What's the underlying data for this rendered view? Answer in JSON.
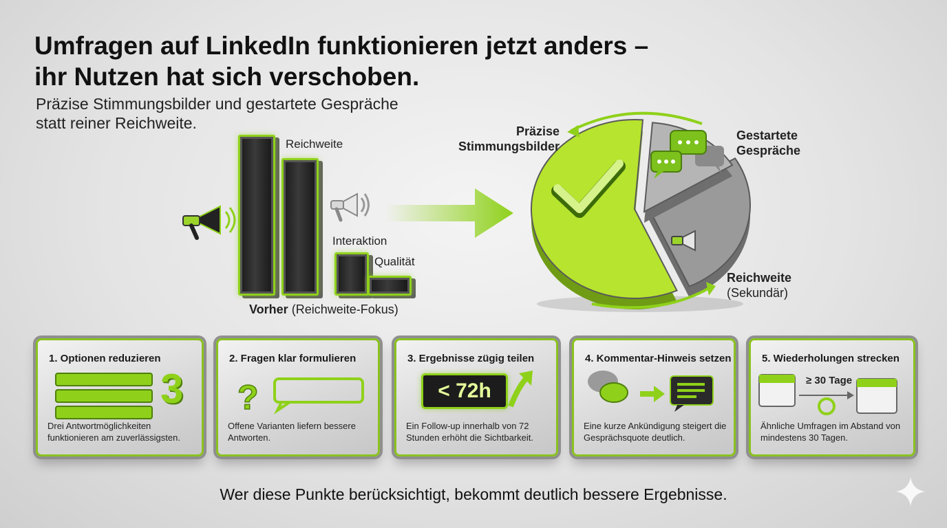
{
  "title": {
    "line1": "Umfragen auf LinkedIn funktionieren jetzt anders –",
    "line2": "ihr Nutzen hat sich verschoben."
  },
  "subtitle": {
    "line1": "Präzise Stimmungsbilder und gestartete Gespräche",
    "line2": "statt reiner Reichweite."
  },
  "before_chart": {
    "bars": [
      {
        "label": "Reichweite",
        "value": 1.0
      },
      {
        "label": "",
        "value": 0.85
      },
      {
        "label": "Interaktion",
        "value": 0.25
      },
      {
        "label": "Qualität",
        "value": 0.1
      }
    ],
    "caption_bold": "Vorher",
    "caption_rest": "(Reichweite-Fokus)"
  },
  "after_chart": {
    "segments": [
      {
        "label_line1": "Präzise",
        "label_line2": "Stimmungsbilder",
        "share": 0.58,
        "color": "#b7e42e"
      },
      {
        "label_line1": "Gestartete",
        "label_line2": "Gespräche",
        "share": 0.27,
        "color": "#9a9a9a"
      },
      {
        "label_line1": "Reichweite",
        "label_line2": "(Sekundär)",
        "share": 0.15,
        "color": "#b5b5b5"
      }
    ]
  },
  "cards": [
    {
      "title": "1. Optionen reduzieren",
      "desc": "Drei Antwortmöglichkeiten funktionieren am zuverlässigsten.",
      "number": "3"
    },
    {
      "title": "2. Fragen klar formulieren",
      "desc": "Offene Varianten liefern bessere Antworten."
    },
    {
      "title": "3. Ergebnisse zügig teilen",
      "desc": "Ein Follow-up innerhalb von 72 Stunden erhöht die Sichtbarkeit.",
      "badge": "< 72h"
    },
    {
      "title": "4. Kommentar-Hinweis setzen",
      "desc": "Eine kurze Ankündigung steigert die Gesprächsquote deutlich."
    },
    {
      "title": "5. Wiederholungen strecken",
      "desc": "Ähnliche Umfragen im Abstand von mindestens 30 Tagen.",
      "interval": "≥ 30 Tage"
    }
  ],
  "footer": "Wer diese Punkte berücksichtigt, bekommt deutlich bessere Ergebnisse.",
  "colors": {
    "accent": "#8fd11a",
    "dark": "#1e1e1e"
  }
}
